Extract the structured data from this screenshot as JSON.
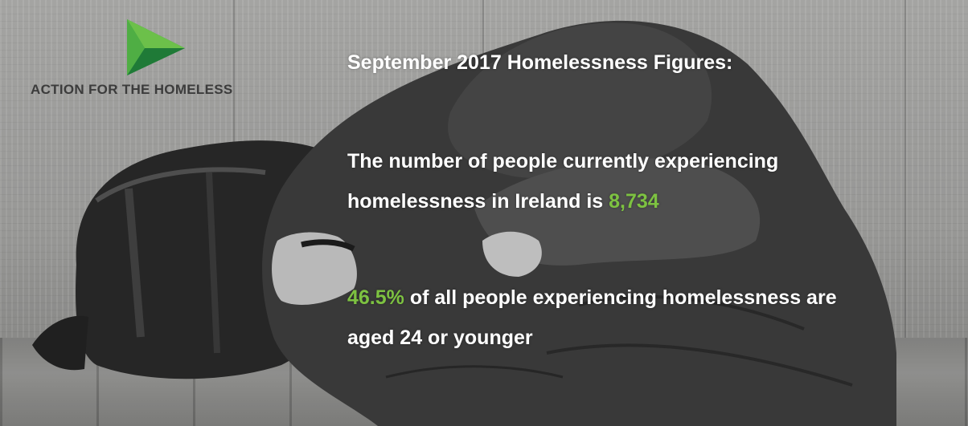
{
  "logo": {
    "icon": "play-triangle-icon",
    "name": "ACTION FOR THE HOMELESS"
  },
  "headline": "September 2017 Homelessness Figures:",
  "stat_1": {
    "line_1": "The number of people currently experiencing",
    "line_2_prefix": "homelessness in Ireland is ",
    "value": "8,734"
  },
  "stat_2": {
    "value": "46.5%",
    "line_1_suffix": " of all people experiencing homelessness are",
    "line_2": "aged 24 or younger"
  },
  "colors": {
    "accent": "#7dc241",
    "text": "#ffffff",
    "logo_text": "#3c3c3c"
  }
}
